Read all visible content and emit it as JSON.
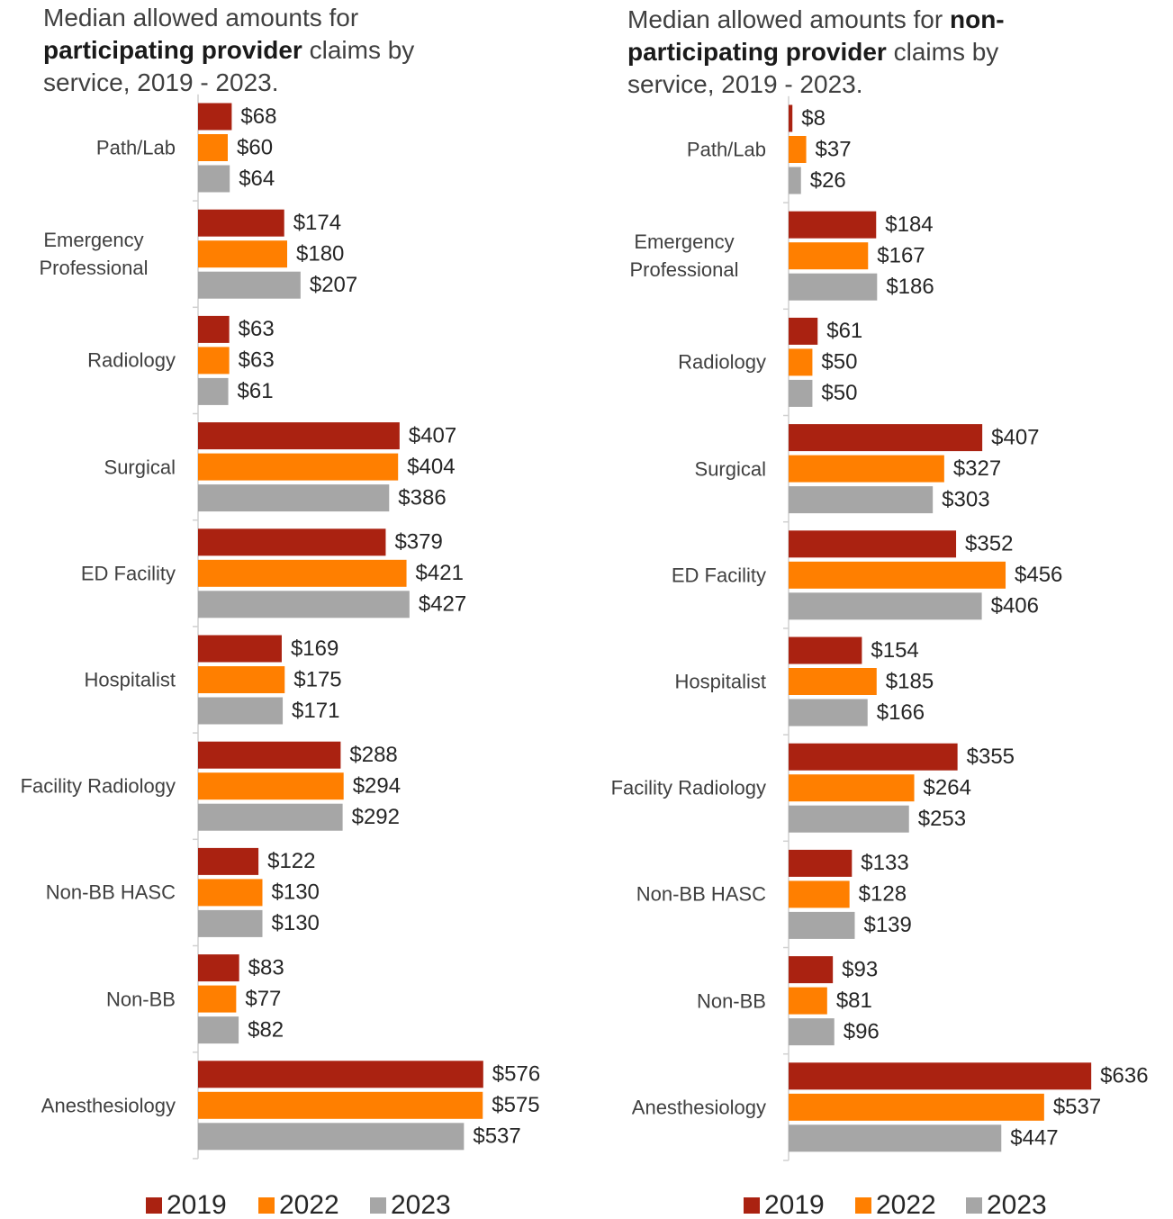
{
  "chart_data": [
    {
      "type": "hbar",
      "title": [
        {
          "text": "Median allowed amounts for "
        },
        {
          "text": "participating provider",
          "bold": true
        },
        {
          "text": " claims by service, 2019 - 2023."
        }
      ],
      "categories": [
        "Path/Lab",
        "Emergency Professional",
        "Radiology",
        "Surgical",
        "ED Facility",
        "Hospitalist",
        "Facility Radiology",
        "Non-BB HASC",
        "Non-BB",
        "Anesthesiology"
      ],
      "series": [
        {
          "name": "2019",
          "color": "#aa2211",
          "values": [
            68,
            174,
            63,
            407,
            379,
            169,
            288,
            122,
            83,
            576
          ],
          "value_labels": [
            "$68",
            "$174",
            "$63",
            "$407",
            "$379",
            "$169",
            "$288",
            "$122",
            "$83",
            "$576"
          ]
        },
        {
          "name": "2022",
          "color": "#ff7f00",
          "values": [
            60,
            180,
            63,
            404,
            421,
            175,
            294,
            130,
            77,
            575
          ],
          "value_labels": [
            "$60",
            "$180",
            "$63",
            "$404",
            "$421",
            "$175",
            "$294",
            "$130",
            "$77",
            "$575"
          ]
        },
        {
          "name": "2023",
          "color": "#a6a6a6",
          "values": [
            64,
            207,
            61,
            386,
            427,
            171,
            292,
            130,
            82,
            537
          ],
          "value_labels": [
            "$64",
            "$207",
            "$61",
            "$386",
            "$427",
            "$171",
            "$292",
            "$130",
            "$82",
            "$537"
          ]
        }
      ],
      "xlim": [
        0,
        700
      ],
      "legend": "bottom"
    },
    {
      "type": "hbar",
      "title": [
        {
          "text": "Median allowed amounts for "
        },
        {
          "text": "non-participating provider",
          "bold": true
        },
        {
          "text": " claims by service, 2019 - 2023."
        }
      ],
      "categories": [
        "Path/Lab",
        "Emergency Professional",
        "Radiology",
        "Surgical",
        "ED Facility",
        "Hospitalist",
        "Facility Radiology",
        "Non-BB HASC",
        "Non-BB",
        "Anesthesiology"
      ],
      "series": [
        {
          "name": "2019",
          "color": "#aa2211",
          "values": [
            8,
            184,
            61,
            407,
            352,
            154,
            355,
            133,
            93,
            636
          ],
          "value_labels": [
            "$8",
            "$184",
            "$61",
            "$407",
            "$352",
            "$154",
            "$355",
            "$133",
            "$93",
            "$636"
          ]
        },
        {
          "name": "2022",
          "color": "#ff7f00",
          "values": [
            37,
            167,
            50,
            327,
            456,
            185,
            264,
            128,
            81,
            537
          ],
          "value_labels": [
            "$37",
            "$167",
            "$50",
            "$327",
            "$456",
            "$185",
            "$264",
            "$128",
            "$81",
            "$537"
          ]
        },
        {
          "name": "2023",
          "color": "#a6a6a6",
          "values": [
            26,
            186,
            50,
            303,
            406,
            166,
            253,
            139,
            96,
            447
          ],
          "value_labels": [
            "$26",
            "$186",
            "$50",
            "$303",
            "$406",
            "$166",
            "$253",
            "$139",
            "$96",
            "$447"
          ]
        }
      ],
      "xlim": [
        0,
        700
      ],
      "legend": "bottom"
    }
  ]
}
